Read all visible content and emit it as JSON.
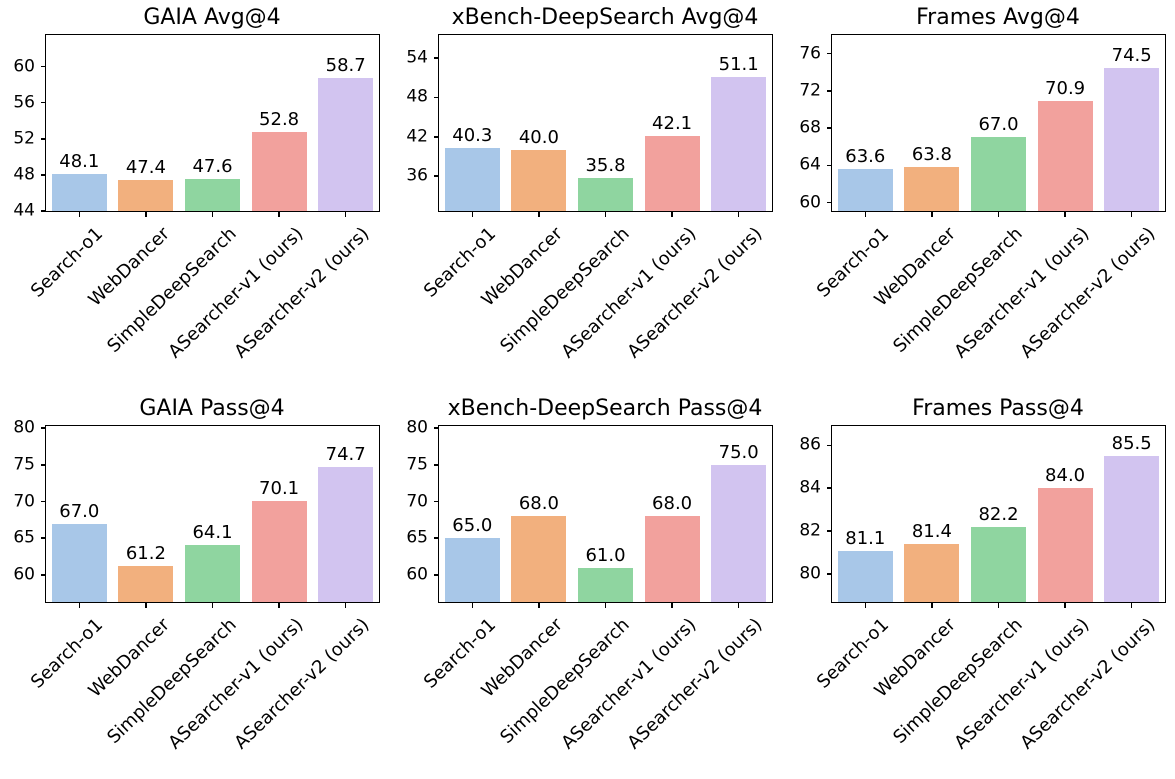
{
  "figure": {
    "background_color": "#ffffff",
    "text_color": "#000000",
    "spine_color": "#000000"
  },
  "palette": [
    "#a8c7e8",
    "#f2b07e",
    "#8fd5a0",
    "#f2a19d",
    "#d2c4f0"
  ],
  "categories": [
    "Search-o1",
    "WebDancer",
    "SimpleDeepSearch",
    "ASearcher-v1 (ours)",
    "ASearcher-v2 (ours)"
  ],
  "chart_data": [
    {
      "type": "bar",
      "title": "GAIA Avg@4",
      "categories": [
        "Search-o1",
        "WebDancer",
        "SimpleDeepSearch",
        "ASearcher-v1 (ours)",
        "ASearcher-v2 (ours)"
      ],
      "values": [
        48.1,
        47.4,
        47.6,
        52.8,
        58.7
      ],
      "yticks": [
        44,
        48,
        52,
        56,
        60
      ],
      "ylim": [
        44.0,
        63.5
      ],
      "grid": false,
      "legend": null
    },
    {
      "type": "bar",
      "title": "xBench-DeepSearch Avg@4",
      "categories": [
        "Search-o1",
        "WebDancer",
        "SimpleDeepSearch",
        "ASearcher-v1 (ours)",
        "ASearcher-v2 (ours)"
      ],
      "values": [
        40.3,
        40.0,
        35.8,
        42.1,
        51.1
      ],
      "yticks": [
        36,
        42,
        48,
        54
      ],
      "ylim": [
        30.7,
        57.5
      ],
      "grid": false,
      "legend": null
    },
    {
      "type": "bar",
      "title": "Frames Avg@4",
      "categories": [
        "Search-o1",
        "WebDancer",
        "SimpleDeepSearch",
        "ASearcher-v1 (ours)",
        "ASearcher-v2 (ours)"
      ],
      "values": [
        63.6,
        63.8,
        67.0,
        70.9,
        74.5
      ],
      "yticks": [
        60,
        64,
        68,
        72,
        76
      ],
      "ylim": [
        59.1,
        78.0
      ],
      "grid": false,
      "legend": null
    },
    {
      "type": "bar",
      "title": "GAIA Pass@4",
      "categories": [
        "Search-o1",
        "WebDancer",
        "SimpleDeepSearch",
        "ASearcher-v1 (ours)",
        "ASearcher-v2 (ours)"
      ],
      "values": [
        67.0,
        61.2,
        64.1,
        70.1,
        74.7
      ],
      "yticks": [
        60,
        65,
        70,
        75,
        80
      ],
      "ylim": [
        56.3,
        80.3
      ],
      "grid": false,
      "legend": null
    },
    {
      "type": "bar",
      "title": "xBench-DeepSearch Pass@4",
      "categories": [
        "Search-o1",
        "WebDancer",
        "SimpleDeepSearch",
        "ASearcher-v1 (ours)",
        "ASearcher-v2 (ours)"
      ],
      "values": [
        65.0,
        68.0,
        61.0,
        68.0,
        75.0
      ],
      "yticks": [
        60,
        65,
        70,
        75,
        80
      ],
      "ylim": [
        56.3,
        80.3
      ],
      "grid": false,
      "legend": null
    },
    {
      "type": "bar",
      "title": "Frames Pass@4",
      "categories": [
        "Search-o1",
        "WebDancer",
        "SimpleDeepSearch",
        "ASearcher-v1 (ours)",
        "ASearcher-v2 (ours)"
      ],
      "values": [
        81.1,
        81.4,
        82.2,
        84.0,
        85.5
      ],
      "yticks": [
        80,
        82,
        84,
        86
      ],
      "ylim": [
        78.7,
        86.9
      ],
      "grid": false,
      "legend": null
    }
  ]
}
